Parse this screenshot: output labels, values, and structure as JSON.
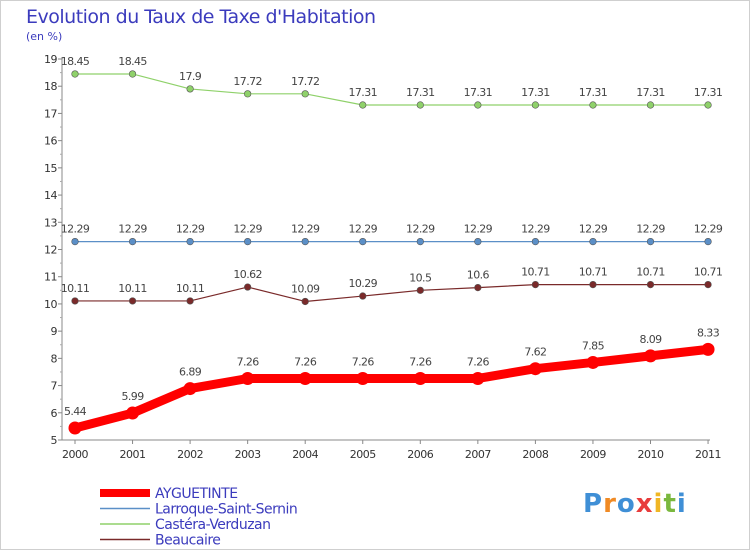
{
  "title": "Evolution du Taux de Taxe d'Habitation",
  "unit_label": "(en %)",
  "logo": {
    "text": "Proxiti",
    "letters": [
      "P",
      "r",
      "o",
      "x",
      "i",
      "t",
      "i"
    ],
    "colors": [
      "#3f8fd6",
      "#f08a24",
      "#3f8fd6",
      "#e83c3c",
      "#f0b624",
      "#7ab83e",
      "#3f8fd6"
    ]
  },
  "chart_data": {
    "type": "line",
    "title": "Evolution du Taux de Taxe d'Habitation",
    "ylabel": "(en %)",
    "xlabel": "",
    "x": [
      "2000",
      "2001",
      "2002",
      "2003",
      "2004",
      "2005",
      "2006",
      "2007",
      "2008",
      "2009",
      "2010",
      "2011"
    ],
    "ylim": [
      5,
      19
    ],
    "yticks": [
      5,
      6,
      7,
      8,
      9,
      10,
      11,
      12,
      13,
      14,
      15,
      16,
      17,
      18,
      19
    ],
    "grid": false,
    "legend_position": "bottom-left",
    "series": [
      {
        "name": "AYGUETINTE",
        "color": "#ff0000",
        "thick": true,
        "values": [
          5.44,
          5.99,
          6.89,
          7.26,
          7.26,
          7.26,
          7.26,
          7.26,
          7.62,
          7.85,
          8.09,
          8.33
        ],
        "labels": [
          "5.44",
          "5.99",
          "6.89",
          "7.26",
          "7.26",
          "7.26",
          "7.26",
          "7.26",
          "7.62",
          "7.85",
          "8.09",
          "8.33"
        ]
      },
      {
        "name": "Larroque-Saint-Sernin",
        "color": "#5b8fc7",
        "thick": false,
        "values": [
          12.29,
          12.29,
          12.29,
          12.29,
          12.29,
          12.29,
          12.29,
          12.29,
          12.29,
          12.29,
          12.29,
          12.29
        ],
        "labels": [
          "12.29",
          "12.29",
          "12.29",
          "12.29",
          "12.29",
          "12.29",
          "12.29",
          "12.29",
          "12.29",
          "12.29",
          "12.29",
          "12.29"
        ]
      },
      {
        "name": "Castéra-Verduzan",
        "color": "#8fd16a",
        "thick": false,
        "values": [
          18.45,
          18.45,
          17.9,
          17.72,
          17.72,
          17.31,
          17.31,
          17.31,
          17.31,
          17.31,
          17.31,
          17.31
        ],
        "labels": [
          "18.45",
          "18.45",
          "17.9",
          "17.72",
          "17.72",
          "17.31",
          "17.31",
          "17.31",
          "17.31",
          "17.31",
          "17.31",
          "17.31"
        ]
      },
      {
        "name": "Beaucaire",
        "color": "#7a2a2a",
        "thick": false,
        "values": [
          10.11,
          10.11,
          10.11,
          10.62,
          10.09,
          10.29,
          10.5,
          10.6,
          10.71,
          10.71,
          10.71,
          10.71
        ],
        "labels": [
          "10.11",
          "10.11",
          "10.11",
          "10.62",
          "10.09",
          "10.29",
          "10.5",
          "10.6",
          "10.71",
          "10.71",
          "10.71",
          "10.71"
        ]
      }
    ]
  }
}
